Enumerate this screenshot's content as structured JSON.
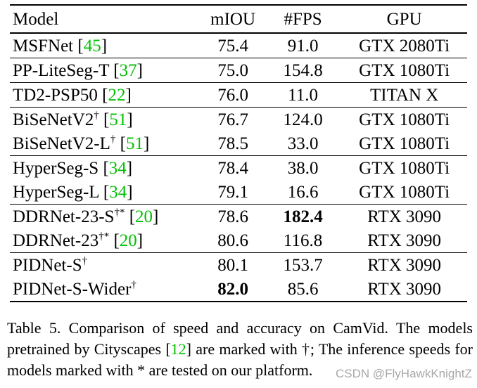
{
  "table": {
    "headers": {
      "model": "Model",
      "miou": "mIOU",
      "fps": "#FPS",
      "gpu": "GPU"
    },
    "rows": [
      {
        "name": "MSFNet",
        "sup": "",
        "ref_open": " [",
        "ref": "45",
        "ref_close": "]",
        "miou": "75.4",
        "fps": "91.0",
        "gpu": "GTX 2080Ti",
        "group_start": true
      },
      {
        "name": "PP-LiteSeg-T",
        "sup": "",
        "ref_open": " [",
        "ref": "37",
        "ref_close": "]",
        "miou": "75.0",
        "fps": "154.8",
        "gpu": "GTX 1080Ti",
        "group_start": true
      },
      {
        "name": "TD2-PSP50",
        "sup": "",
        "ref_open": " [",
        "ref": "22",
        "ref_close": "]",
        "miou": "76.0",
        "fps": "11.0",
        "gpu": "TITAN X",
        "group_start": true
      },
      {
        "name": "BiSeNetV2",
        "sup": "†",
        "ref_open": " [",
        "ref": "51",
        "ref_close": "]",
        "miou": "76.7",
        "fps": "124.0",
        "gpu": "GTX 1080Ti",
        "group_start": true
      },
      {
        "name": "BiSeNetV2-L",
        "sup": "†",
        "ref_open": " [",
        "ref": "51",
        "ref_close": "]",
        "miou": "78.5",
        "fps": "33.0",
        "gpu": "GTX 1080Ti",
        "group_start": false
      },
      {
        "name": "HyperSeg-S",
        "sup": "",
        "ref_open": " [",
        "ref": "34",
        "ref_close": "]",
        "miou": "78.4",
        "fps": "38.0",
        "gpu": "GTX 1080Ti",
        "group_start": true
      },
      {
        "name": "HyperSeg-L",
        "sup": "",
        "ref_open": " [",
        "ref": "34",
        "ref_close": "]",
        "miou": "79.1",
        "fps": "16.6",
        "gpu": "GTX 1080Ti",
        "group_start": false
      },
      {
        "name": "DDRNet-23-S",
        "sup": "†*",
        "ref_open": " [",
        "ref": "20",
        "ref_close": "]",
        "miou": "78.6",
        "fps": "182.4",
        "gpu": "RTX 3090",
        "group_start": true,
        "fps_bold": true
      },
      {
        "name": "DDRNet-23",
        "sup": "†*",
        "ref_open": " [",
        "ref": "20",
        "ref_close": "]",
        "miou": "80.6",
        "fps": "116.8",
        "gpu": "RTX 3090",
        "group_start": false
      },
      {
        "name": "PIDNet-S",
        "sup": "†",
        "ref_open": "",
        "ref": "",
        "ref_close": "",
        "miou": "80.1",
        "fps": "153.7",
        "gpu": "RTX 3090",
        "group_start": true
      },
      {
        "name": "PIDNet-S-Wider",
        "sup": "†",
        "ref_open": "",
        "ref": "",
        "ref_close": "",
        "miou": "82.0",
        "fps": "85.6",
        "gpu": "RTX 3090",
        "group_start": false,
        "miou_bold": true
      }
    ]
  },
  "caption": {
    "part1": "Table 5. Comparison of speed and accuracy on CamVid. The models pretrained by Cityscapes [",
    "ref": "12",
    "part2": "] are marked with †; The inference speeds for models marked with * are tested on our platform."
  },
  "watermark": "CSDN @FlyHawkKnightZ",
  "colors": {
    "reference_green": "#00c000",
    "watermark_gray": "#9a9a9a"
  }
}
